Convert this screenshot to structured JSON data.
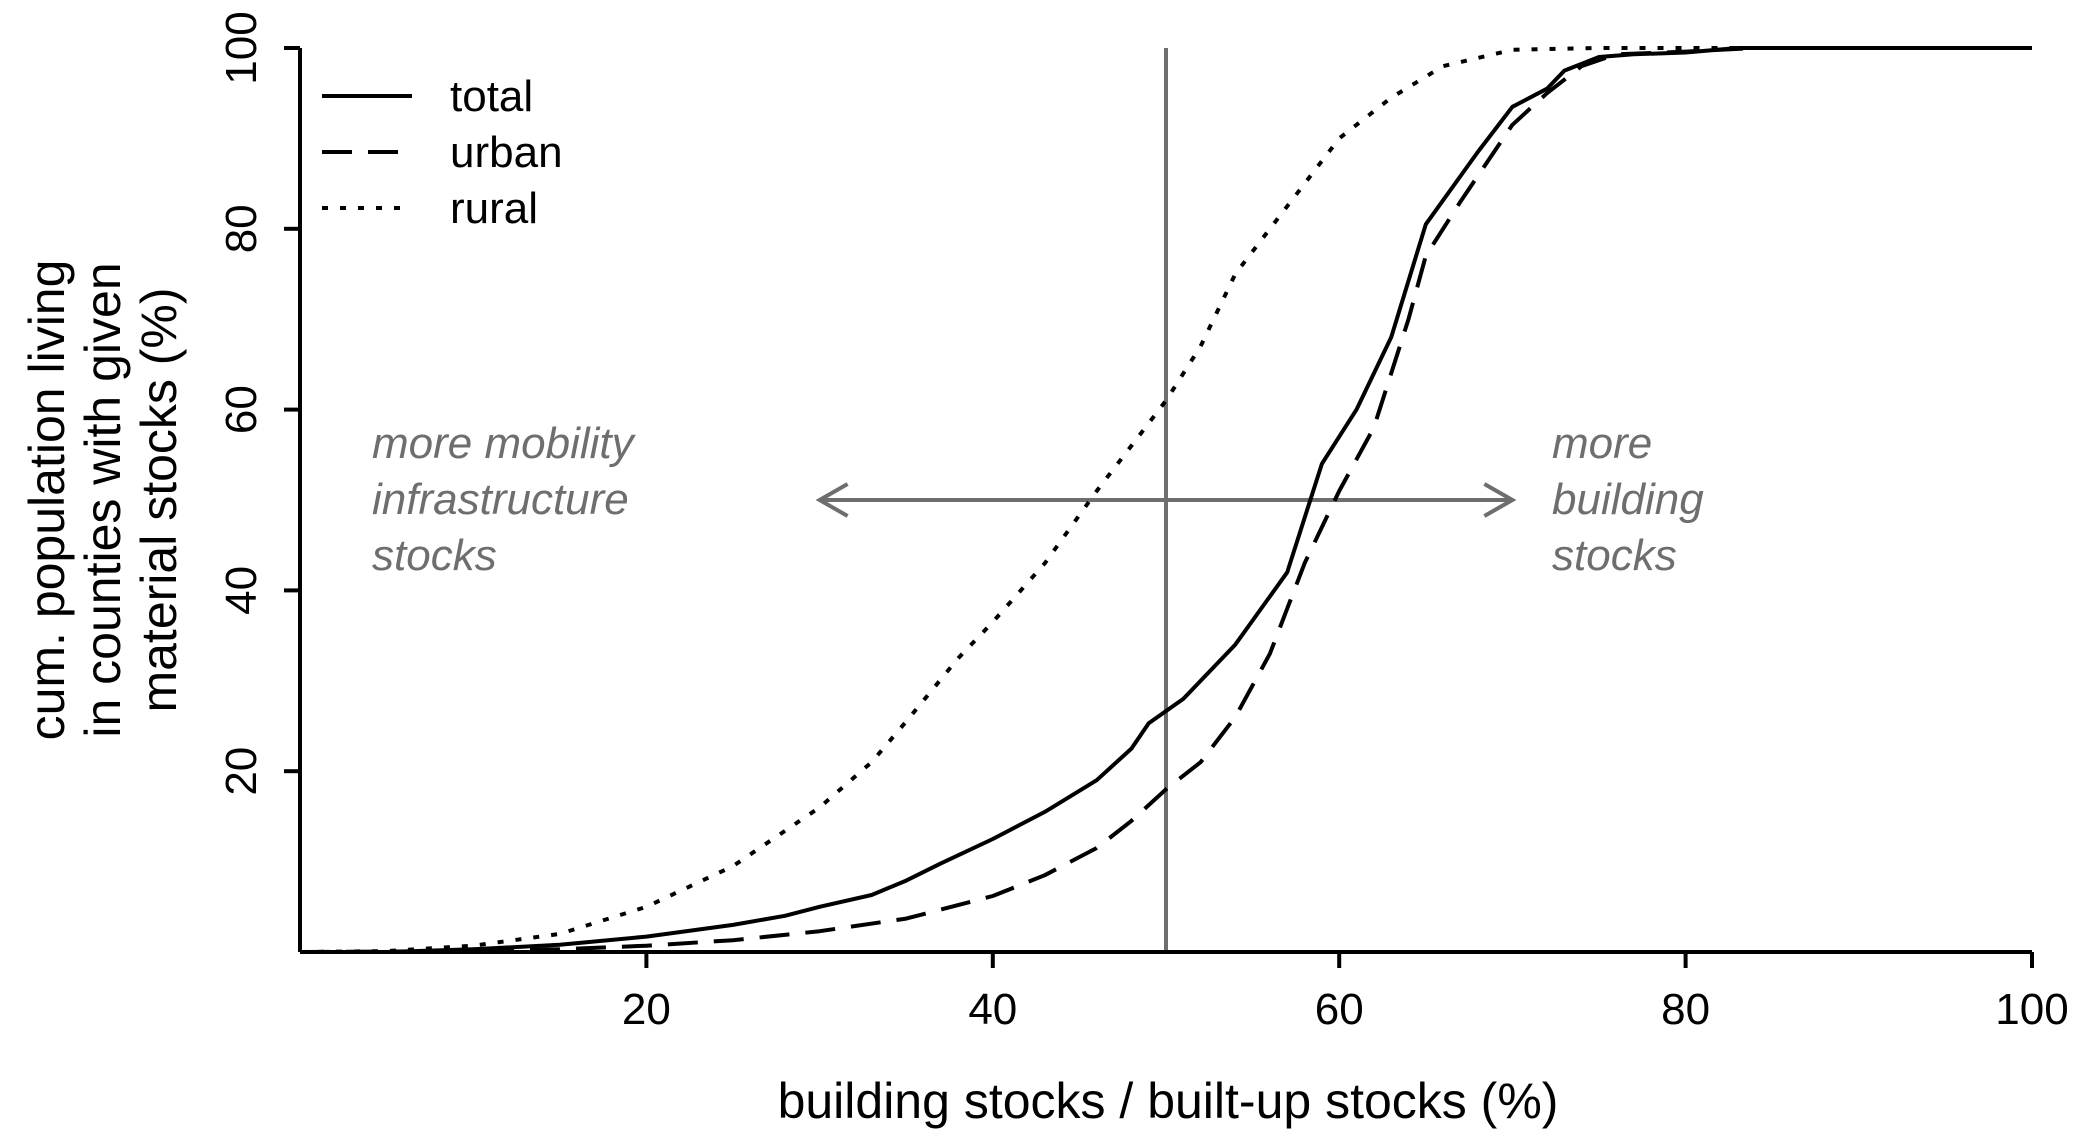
{
  "chart_data": {
    "type": "line",
    "title": "",
    "xlabel": "building stocks / built-up stocks (%)",
    "ylabel_lines": [
      "cum. population living",
      "in counties with given",
      "material stocks (%)"
    ],
    "xlim": [
      0,
      100
    ],
    "ylim": [
      0,
      100
    ],
    "xticks": [
      20,
      40,
      60,
      80,
      100
    ],
    "yticks": [
      20,
      40,
      60,
      80,
      100
    ],
    "grid": false,
    "legend_position": "top-left",
    "reference_line_x": 50,
    "reference_line_color": "#6e6e6e",
    "annotations": {
      "left": [
        "more mobility",
        "infrastructure",
        "stocks"
      ],
      "right": [
        "more",
        "building",
        "stocks"
      ],
      "arrow_from": 30,
      "arrow_to": 70,
      "arrow_y": 50
    },
    "series": [
      {
        "name": "total",
        "dash": "solid",
        "points": [
          [
            0,
            0
          ],
          [
            5,
            0
          ],
          [
            10,
            0.3
          ],
          [
            15,
            0.8
          ],
          [
            20,
            1.7
          ],
          [
            25,
            3
          ],
          [
            28,
            4
          ],
          [
            30,
            5
          ],
          [
            33,
            6.3
          ],
          [
            35,
            7.9
          ],
          [
            37,
            9.8
          ],
          [
            40,
            12.5
          ],
          [
            43,
            15.5
          ],
          [
            46,
            19
          ],
          [
            48,
            22.5
          ],
          [
            49,
            25.3
          ],
          [
            51,
            28
          ],
          [
            54,
            34
          ],
          [
            57,
            42
          ],
          [
            59,
            54
          ],
          [
            61,
            60
          ],
          [
            63,
            68
          ],
          [
            65,
            80.5
          ],
          [
            68,
            88.5
          ],
          [
            70,
            93.5
          ],
          [
            72,
            95.5
          ],
          [
            73,
            97.5
          ],
          [
            75,
            99
          ],
          [
            77,
            99.3
          ],
          [
            80,
            99.5
          ],
          [
            83,
            100
          ],
          [
            100,
            100
          ]
        ]
      },
      {
        "name": "urban",
        "dash": "dashed",
        "points": [
          [
            0,
            0
          ],
          [
            10,
            0.1
          ],
          [
            15,
            0.3
          ],
          [
            20,
            0.7
          ],
          [
            25,
            1.3
          ],
          [
            30,
            2.3
          ],
          [
            35,
            3.7
          ],
          [
            40,
            6.2
          ],
          [
            43,
            8.5
          ],
          [
            46,
            11.5
          ],
          [
            48,
            14.5
          ],
          [
            50,
            18
          ],
          [
            52,
            21
          ],
          [
            54,
            26
          ],
          [
            56,
            33
          ],
          [
            58,
            43
          ],
          [
            60,
            51
          ],
          [
            62,
            58
          ],
          [
            64,
            70
          ],
          [
            65,
            77
          ],
          [
            67,
            83
          ],
          [
            70,
            91.5
          ],
          [
            72,
            95
          ],
          [
            74,
            98
          ],
          [
            76,
            99.3
          ],
          [
            80,
            99.6
          ],
          [
            84,
            100
          ],
          [
            100,
            100
          ]
        ]
      },
      {
        "name": "rural",
        "dash": "dotted",
        "points": [
          [
            0,
            0
          ],
          [
            5,
            0.1
          ],
          [
            10,
            0.7
          ],
          [
            15,
            2
          ],
          [
            20,
            5
          ],
          [
            25,
            9.5
          ],
          [
            30,
            16
          ],
          [
            33,
            21
          ],
          [
            35,
            25.5
          ],
          [
            38,
            32.5
          ],
          [
            40,
            36.5
          ],
          [
            43,
            43
          ],
          [
            46,
            51
          ],
          [
            48,
            56
          ],
          [
            50,
            61
          ],
          [
            52,
            67
          ],
          [
            54,
            75
          ],
          [
            56,
            80
          ],
          [
            58,
            85
          ],
          [
            60,
            90
          ],
          [
            63,
            94.5
          ],
          [
            66,
            98
          ],
          [
            70,
            99.8
          ],
          [
            75,
            100
          ],
          [
            100,
            100
          ]
        ]
      }
    ]
  }
}
